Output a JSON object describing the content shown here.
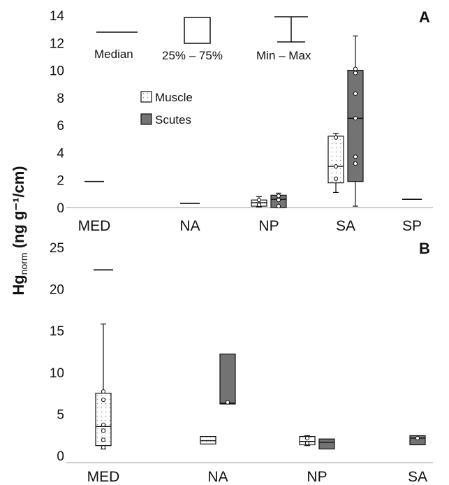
{
  "colors": {
    "muscle_fill": "#ffffff",
    "muscle_dots": "#9a9a9a",
    "scutes_fill": "#737373",
    "line": "#111111",
    "axis": "#bdbdbd"
  },
  "shared": {
    "ylabel_main": "Hg",
    "ylabel_sub": "norm",
    "ylabel_unit": " (ng g⁻¹/cm)"
  },
  "chart_data": [
    {
      "type": "box",
      "panel_label": "A",
      "categories": [
        "MED",
        "NA",
        "NP",
        "SA",
        "SP"
      ],
      "ylim": [
        0,
        14
      ],
      "yticks": [
        0,
        2,
        4,
        6,
        8,
        10,
        12,
        14
      ],
      "grid": false,
      "legend": {
        "position": "top-center",
        "series": [
          {
            "name": "Muscle",
            "fill": "muscle"
          },
          {
            "name": "Scutes",
            "fill": "scutes"
          }
        ],
        "key": {
          "median_label": "Median",
          "box_label": "25% – 75%",
          "whisker_label": "Min – Max"
        }
      },
      "series": [
        {
          "name": "Muscle",
          "boxes": [
            {
              "category": "MED",
              "median": 1.9
            },
            {
              "category": "NA",
              "median": 0.3
            },
            {
              "category": "NP",
              "q1": 0.1,
              "median": 0.35,
              "q3": 0.55,
              "min": 0.05,
              "max": 0.8,
              "points": [
                0.2,
                0.55
              ]
            },
            {
              "category": "SA",
              "q1": 1.8,
              "median": 3.0,
              "q3": 5.2,
              "min": 1.1,
              "max": 5.4,
              "points": [
                2.1,
                3.0,
                5.1
              ]
            },
            {
              "category": "SP",
              "median": 0.6
            }
          ]
        },
        {
          "name": "Scutes",
          "boxes": [
            {
              "category": "NP",
              "q1": 0.0,
              "median": 0.6,
              "q3": 0.9,
              "min": 0.0,
              "max": 1.05,
              "points": [
                0.1,
                0.55,
                0.85
              ]
            },
            {
              "category": "SA",
              "q1": 1.9,
              "median": 6.5,
              "q3": 10.0,
              "min": 0.1,
              "max": 12.5,
              "points": [
                3.2,
                3.7,
                6.5,
                8.3,
                9.8,
                10.1
              ]
            }
          ]
        }
      ]
    },
    {
      "type": "box",
      "panel_label": "B",
      "categories": [
        "MED",
        "NA",
        "NP",
        "SA"
      ],
      "ylim": [
        0,
        25
      ],
      "yticks": [
        0,
        5,
        10,
        15,
        20,
        25
      ],
      "grid": false,
      "series": [
        {
          "name": "Muscle",
          "boxes": [
            {
              "category": "MED",
              "q1": 1.2,
              "median": 3.5,
              "q3": 7.5,
              "min": 0.8,
              "max": 15.8,
              "points": [
                1.0,
                1.9,
                3.0,
                3.7,
                6.7,
                7.7
              ]
            },
            {
              "category": "NA",
              "q1": 1.4,
              "median": 1.8,
              "q3": 2.3
            },
            {
              "category": "NP",
              "q1": 1.3,
              "median": 1.7,
              "q3": 2.3,
              "min": 1.2,
              "max": 2.4,
              "points": [
                1.5,
                2.1
              ]
            }
          ]
        },
        {
          "name": "Scutes",
          "boxes": [
            {
              "category": "MED",
              "median": 22.3
            },
            {
              "category": "NA",
              "q1": 6.2,
              "median": 6.3,
              "q3": 12.2,
              "points": [
                6.4
              ]
            },
            {
              "category": "NP",
              "q1": 0.8,
              "median": 1.6,
              "q3": 2.0
            },
            {
              "category": "SA",
              "q1": 1.3,
              "median": 2.1,
              "q3": 2.4,
              "points": [
                2.1
              ]
            }
          ]
        }
      ]
    }
  ]
}
